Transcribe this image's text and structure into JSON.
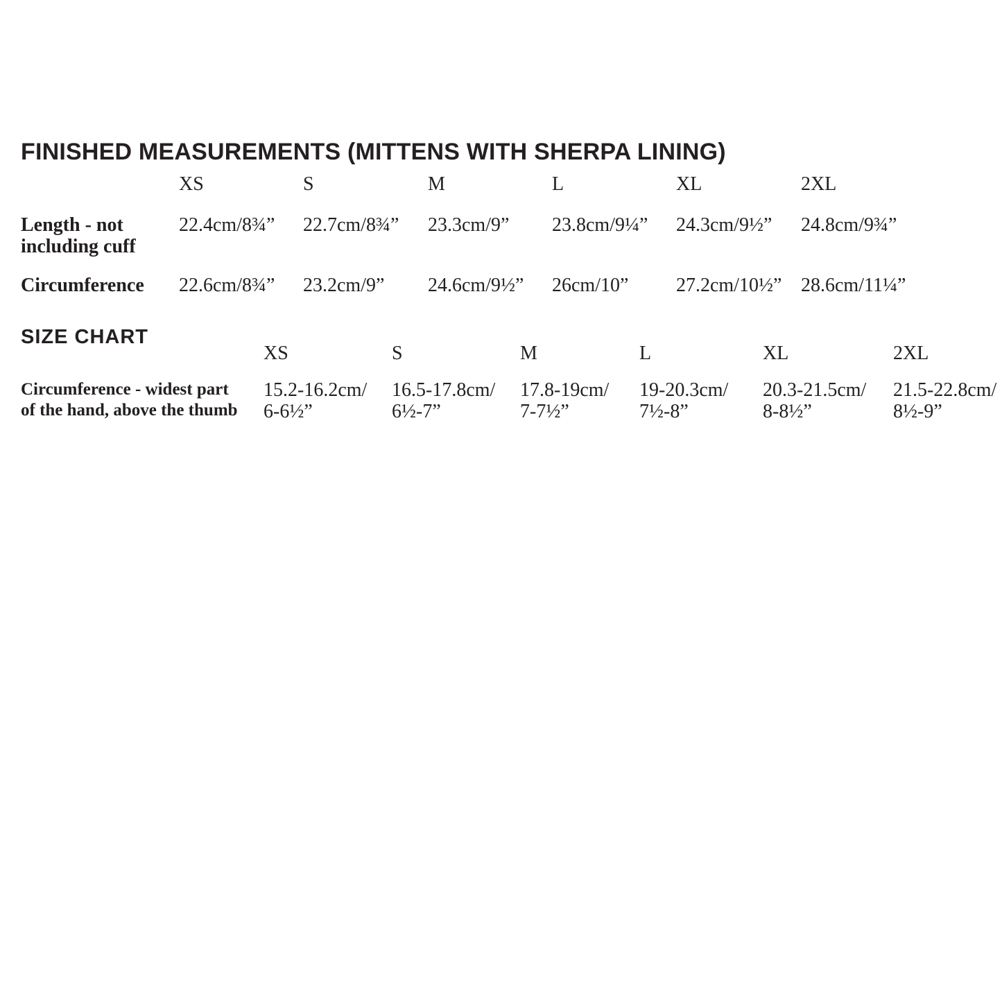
{
  "document": {
    "background": "#ffffff",
    "text_color": "#231f20"
  },
  "finished_measurements": {
    "title": "FINISHED MEASUREMENTS (MITTENS WITH SHERPA LINING)",
    "sizes": [
      "XS",
      "S",
      "M",
      "L",
      "XL",
      "2XL"
    ],
    "rows": [
      {
        "label": "Length - not\nincluding cuff",
        "values": [
          "22.4cm/8¾”",
          "22.7cm/8¾”",
          "23.3cm/9”",
          "23.8cm/9¼”",
          "24.3cm/9½”",
          "24.8cm/9¾”"
        ]
      },
      {
        "label": "Circumference",
        "values": [
          "22.6cm/8¾”",
          "23.2cm/9”",
          "24.6cm/9½”",
          "26cm/10”",
          "27.2cm/10½”",
          "28.6cm/11¼”"
        ]
      }
    ]
  },
  "size_chart": {
    "title": "SIZE CHART",
    "sizes": [
      "XS",
      "S",
      "M",
      "L",
      "XL",
      "2XL"
    ],
    "rows": [
      {
        "label": "Circumference - widest part\nof the hand, above the thumb",
        "values": [
          "15.2-16.2cm/\n6-6½”",
          "16.5-17.8cm/\n6½-7”",
          "17.8-19cm/\n7-7½”",
          "19-20.3cm/\n7½-8”",
          "20.3-21.5cm/\n8-8½”",
          "21.5-22.8cm/\n8½-9”"
        ]
      }
    ]
  }
}
